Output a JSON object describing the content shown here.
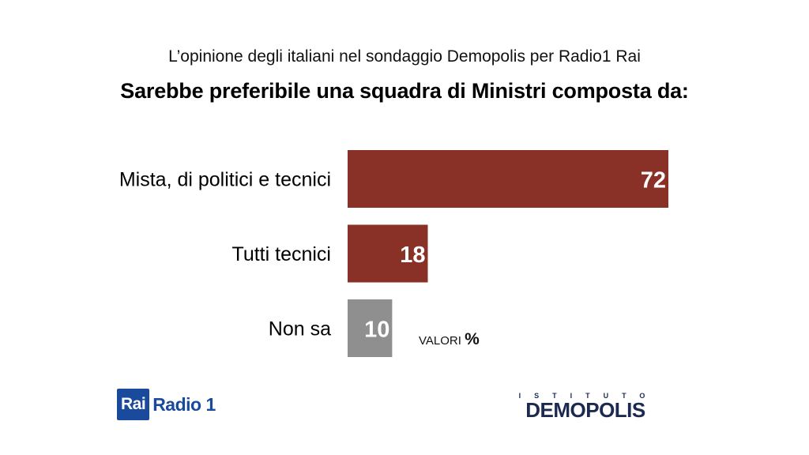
{
  "header": {
    "subtitle": "L’opinione degli italiani nel sondaggio Demopolis per Radio1 Rai",
    "title": "Sarebbe preferibile una squadra di Ministri composta da:"
  },
  "chart_data": {
    "type": "bar",
    "orientation": "horizontal",
    "categories": [
      "Mista, di politici e tecnici",
      "Tutti tecnici",
      "Non sa"
    ],
    "values": [
      72,
      18,
      10
    ],
    "colors": [
      "#8a3127",
      "#8a3127",
      "#8f8f8f"
    ],
    "unit_note": "VALORI",
    "unit_symbol": "%",
    "xlim": [
      0,
      72
    ]
  },
  "logos": {
    "rai_box": "Rai",
    "rai_text": "Radio 1",
    "demopolis_top": "ISTITUTO",
    "demopolis_brand": "DEMOPOLIS"
  }
}
